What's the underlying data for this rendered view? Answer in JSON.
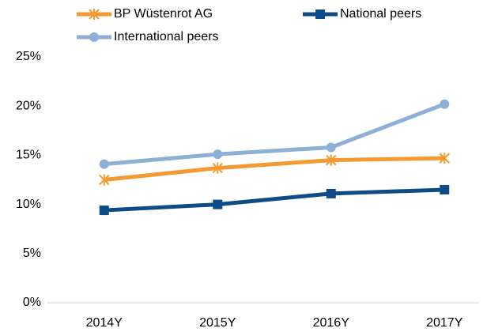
{
  "chart_data": {
    "type": "line",
    "categories": [
      "2014Y",
      "2015Y",
      "2016Y",
      "2017Y"
    ],
    "series": [
      {
        "name": "BP Wüstenrot AG",
        "color": "#f39a32",
        "marker": "asterisk",
        "values": [
          12.5,
          13.7,
          14.5,
          14.7
        ]
      },
      {
        "name": "National peers",
        "color": "#0f4c87",
        "marker": "square",
        "values": [
          9.4,
          10.0,
          11.1,
          11.5
        ]
      },
      {
        "name": "International peers",
        "color": "#8fb0d6",
        "marker": "circle",
        "values": [
          14.1,
          15.1,
          15.8,
          20.2
        ]
      }
    ],
    "ylim": [
      0,
      25
    ],
    "yticks": [
      {
        "value": 0,
        "label": "0%"
      },
      {
        "value": 5,
        "label": "5%"
      },
      {
        "value": 10,
        "label": "10%"
      },
      {
        "value": 15,
        "label": "15%"
      },
      {
        "value": 20,
        "label": "20%"
      },
      {
        "value": 25,
        "label": "25%"
      }
    ],
    "grid": false,
    "legend": "top"
  }
}
